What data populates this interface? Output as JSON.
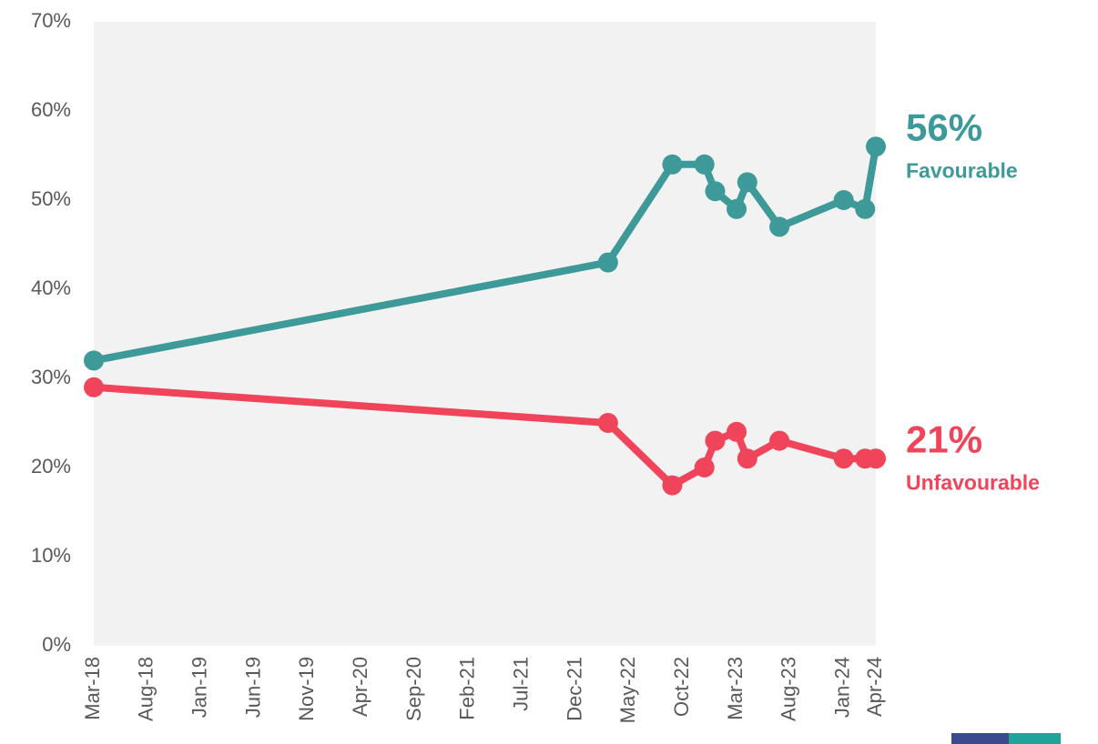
{
  "chart_data": {
    "type": "line",
    "x": [
      "2018-03",
      "2022-03",
      "2022-09",
      "2022-12",
      "2023-01",
      "2023-03",
      "2023-04",
      "2023-07",
      "2024-01",
      "2024-03",
      "2024-04"
    ],
    "series": [
      {
        "name": "Favourable",
        "color": "#3d9a98",
        "values": [
          32,
          43,
          54,
          54,
          51,
          49,
          52,
          47,
          50,
          49,
          56
        ],
        "value_labels": [
          null,
          null,
          null,
          null,
          null,
          null,
          null,
          null,
          null,
          null,
          "56%"
        ]
      },
      {
        "name": "Unfavourable",
        "color": "#f0445a",
        "values": [
          29,
          25,
          18,
          20,
          23,
          24,
          21,
          23,
          21,
          21,
          21
        ],
        "value_labels": [
          null,
          null,
          null,
          null,
          null,
          null,
          null,
          null,
          null,
          null,
          "21%"
        ]
      }
    ],
    "xlim": [
      "2018-03",
      "2024-04"
    ],
    "xticks": [
      {
        "value": "2018-03",
        "label": "Mar-18"
      },
      {
        "value": "2018-08",
        "label": "Aug-18"
      },
      {
        "value": "2019-01",
        "label": "Jan-19"
      },
      {
        "value": "2019-06",
        "label": "Jun-19"
      },
      {
        "value": "2019-11",
        "label": "Nov-19"
      },
      {
        "value": "2020-04",
        "label": "Apr-20"
      },
      {
        "value": "2020-09",
        "label": "Sep-20"
      },
      {
        "value": "2021-02",
        "label": "Feb-21"
      },
      {
        "value": "2021-07",
        "label": "Jul-21"
      },
      {
        "value": "2021-12",
        "label": "Dec-21"
      },
      {
        "value": "2022-05",
        "label": "May-22"
      },
      {
        "value": "2022-10",
        "label": "Oct-22"
      },
      {
        "value": "2023-03",
        "label": "Mar-23"
      },
      {
        "value": "2023-08",
        "label": "Aug-23"
      },
      {
        "value": "2024-01",
        "label": "Jan-24"
      },
      {
        "value": "2024-04",
        "label": "Apr-24"
      }
    ],
    "ylim": [
      0,
      70
    ],
    "yticks": [
      {
        "value": 0,
        "label": "0%"
      },
      {
        "value": 10,
        "label": "10%"
      },
      {
        "value": 20,
        "label": "20%"
      },
      {
        "value": 30,
        "label": "30%"
      },
      {
        "value": 40,
        "label": "40%"
      },
      {
        "value": 50,
        "label": "50%"
      },
      {
        "value": 60,
        "label": "60%"
      },
      {
        "value": 70,
        "label": "70%"
      }
    ]
  }
}
